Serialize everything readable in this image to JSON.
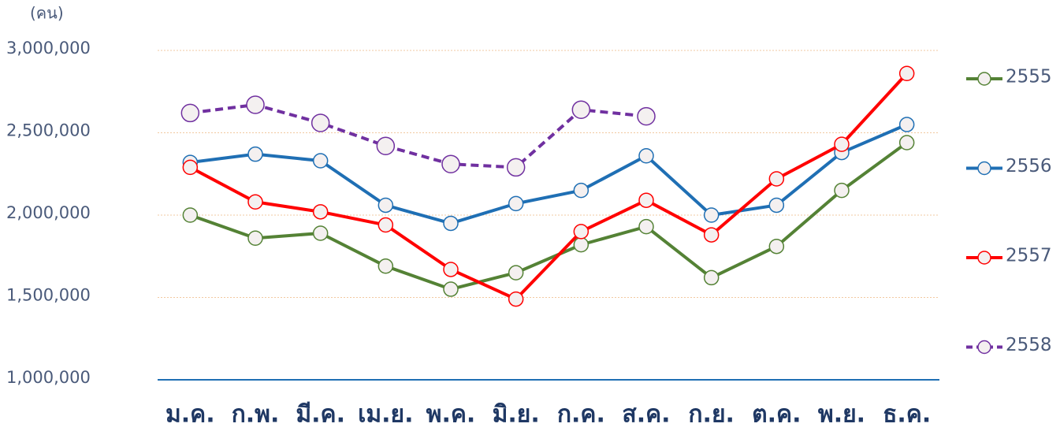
{
  "chart_data": {
    "type": "line",
    "y_label": "(คน)",
    "categories": [
      "ม.ค.",
      "ก.พ.",
      "มี.ค.",
      "เม.ย.",
      "พ.ค.",
      "มิ.ย.",
      "ก.ค.",
      "ส.ค.",
      "ก.ย.",
      "ต.ค.",
      "พ.ย.",
      "ธ.ค."
    ],
    "series": [
      {
        "name": "2555",
        "color": "#548235",
        "dash": false,
        "values": [
          2000000,
          1860000,
          1890000,
          1690000,
          1550000,
          1650000,
          1820000,
          1930000,
          1620000,
          1810000,
          2150000,
          2440000
        ]
      },
      {
        "name": "2556",
        "color": "#1f6fb4",
        "dash": false,
        "values": [
          2320000,
          2370000,
          2330000,
          2060000,
          1950000,
          2070000,
          2150000,
          2360000,
          2000000,
          2060000,
          2380000,
          2550000
        ]
      },
      {
        "name": "2557",
        "color": "#ff0000",
        "dash": false,
        "values": [
          2290000,
          2080000,
          2020000,
          1940000,
          1670000,
          1490000,
          1900000,
          2090000,
          1880000,
          2220000,
          2430000,
          2860000
        ]
      },
      {
        "name": "2558",
        "color": "#7030a0",
        "dash": true,
        "values": [
          2620000,
          2670000,
          2560000,
          2420000,
          2310000,
          2290000,
          2640000,
          2600000,
          null,
          null,
          null,
          null
        ]
      }
    ],
    "ylim": [
      1000000,
      3000000
    ],
    "yticks": [
      {
        "value": 1000000,
        "label": "1,000,000"
      },
      {
        "value": 1500000,
        "label": "1,500,000"
      },
      {
        "value": 2000000,
        "label": "2,000,000"
      },
      {
        "value": 2500000,
        "label": "2,500,000"
      },
      {
        "value": 3000000,
        "label": "3,000,000"
      }
    ],
    "grid": true,
    "legend": "right"
  }
}
